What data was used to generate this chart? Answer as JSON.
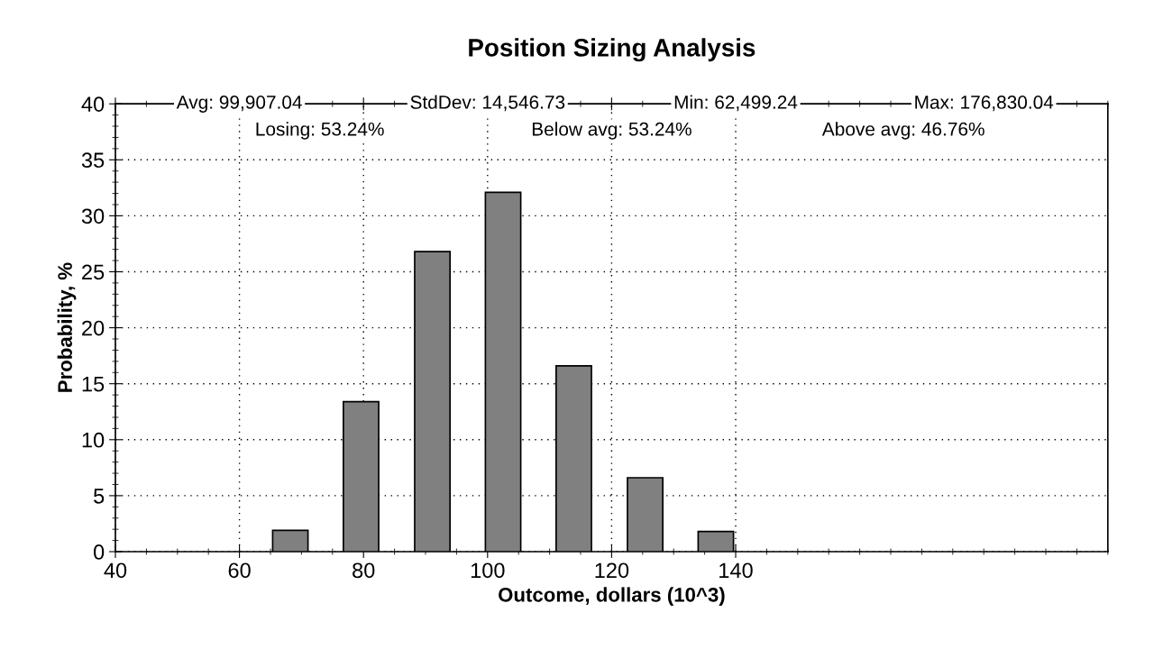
{
  "chart_data": {
    "type": "bar",
    "title": "Position Sizing Analysis",
    "xlabel": "Outcome, dollars (10^3)",
    "ylabel": "Probability, %",
    "x": [
      68.2,
      79.6,
      91.1,
      102.5,
      113.9,
      125.4,
      136.8
    ],
    "series": [
      {
        "color": "#808080",
        "values": [
          1.9,
          13.4,
          26.8,
          32.1,
          16.6,
          6.6,
          1.8
        ]
      }
    ],
    "xlim": [
      40,
      200
    ],
    "xticks": [
      40,
      60,
      80,
      100,
      120,
      140
    ],
    "ylim": [
      0,
      40
    ],
    "yticks": [
      0,
      5,
      10,
      15,
      20,
      25,
      30,
      35,
      40
    ],
    "grid": true,
    "legend": false,
    "annotations": [
      "Avg: 99,907.04",
      "StdDev: 14,546.73",
      "Min: 62,499.24",
      "Max: 176,830.04",
      "Losing: 53.24%",
      "Below avg: 53.24%",
      "Above avg: 46.76%"
    ]
  }
}
